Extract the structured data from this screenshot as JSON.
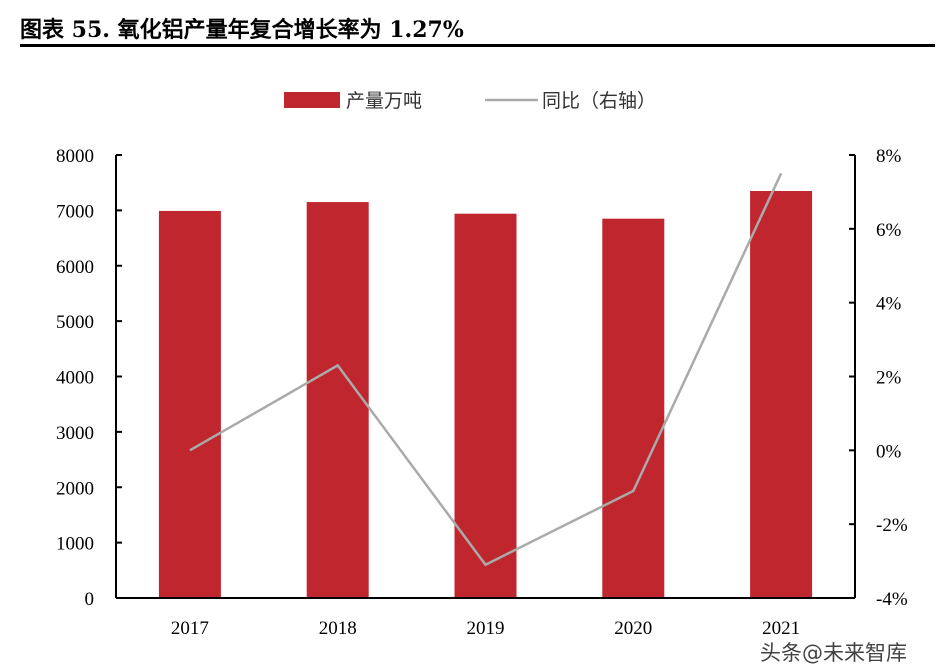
{
  "title": "图表 55. 氧化铝产量年复合增长率为 1.27%",
  "watermark": "头条@未来智库",
  "chart_data": {
    "type": "bar",
    "title": "图表 55. 氧化铝产量年复合增长率为 1.27%",
    "categories": [
      "2017",
      "2018",
      "2019",
      "2020",
      "2021"
    ],
    "series": [
      {
        "name": "产量万吨",
        "type": "bar",
        "axis": "left",
        "color": "#C0262E",
        "values": [
          6990,
          7150,
          6940,
          6850,
          7350
        ]
      },
      {
        "name": "同比（右轴）",
        "type": "line",
        "axis": "right",
        "color": "#AAAAAA",
        "values": [
          0.0,
          2.3,
          -3.1,
          -1.1,
          7.5
        ]
      }
    ],
    "y_left": {
      "range": [
        0,
        8000
      ],
      "ticks": [
        "0",
        "1000",
        "2000",
        "3000",
        "4000",
        "5000",
        "6000",
        "7000",
        "8000"
      ]
    },
    "y_right": {
      "range": [
        -4,
        8
      ],
      "unit": "%",
      "ticks": [
        "-4%",
        "-2%",
        "0%",
        "2%",
        "4%",
        "6%",
        "8%"
      ]
    },
    "legend_placement": "top",
    "grid": false
  }
}
